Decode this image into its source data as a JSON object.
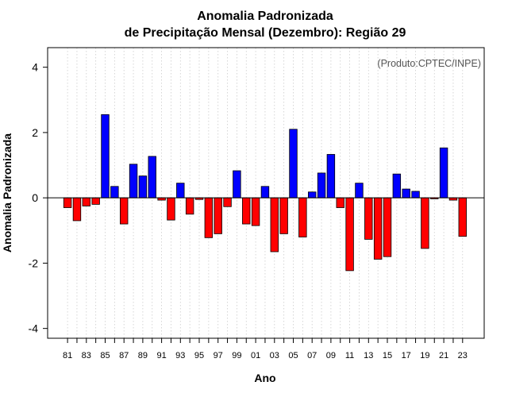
{
  "chart_data": {
    "type": "bar",
    "title_line1": "Anomalia Padronizada",
    "title_line2": "de Precipitação Mensal (Dezembro): Região 29",
    "xlabel": "Ano",
    "ylabel": "Anomalia Padronizada",
    "credit": "(Produto:CPTEC/INPE)",
    "ylim": [
      -4.3,
      4.6
    ],
    "yticks": [
      {
        "value": -4,
        "label": "-4"
      },
      {
        "value": -2,
        "label": "-2"
      },
      {
        "value": 0,
        "label": "0"
      },
      {
        "value": 2,
        "label": "2"
      },
      {
        "value": 4,
        "label": "4"
      }
    ],
    "categories": [
      "81",
      "82",
      "83",
      "84",
      "85",
      "86",
      "87",
      "88",
      "89",
      "90",
      "91",
      "92",
      "93",
      "94",
      "95",
      "96",
      "97",
      "98",
      "99",
      "00",
      "01",
      "02",
      "03",
      "04",
      "05",
      "06",
      "07",
      "08",
      "09",
      "10",
      "11",
      "12",
      "13",
      "14",
      "15",
      "16",
      "17",
      "18",
      "19",
      "20",
      "21",
      "22",
      "23"
    ],
    "values": [
      -0.3,
      -0.7,
      -0.25,
      -0.2,
      2.55,
      0.35,
      -0.8,
      1.03,
      0.67,
      1.27,
      -0.07,
      -0.68,
      0.45,
      -0.5,
      -0.05,
      -1.22,
      -1.1,
      -0.27,
      0.83,
      -0.8,
      -0.85,
      0.35,
      -1.65,
      -1.1,
      2.1,
      -1.2,
      0.18,
      0.76,
      1.33,
      -0.3,
      -2.23,
      0.45,
      -1.27,
      -1.88,
      -1.8,
      0.73,
      0.27,
      0.2,
      -1.55,
      -0.03,
      1.53,
      -0.07,
      -1.18
    ],
    "xtick_labels": [
      "81",
      "83",
      "85",
      "87",
      "89",
      "91",
      "93",
      "95",
      "97",
      "99",
      "01",
      "03",
      "05",
      "07",
      "09",
      "11",
      "13",
      "15",
      "17",
      "19",
      "21",
      "23"
    ],
    "positive_color": "#0000ff",
    "negative_color": "#ff0000",
    "grid": "vertical dotted",
    "legend": "none"
  }
}
